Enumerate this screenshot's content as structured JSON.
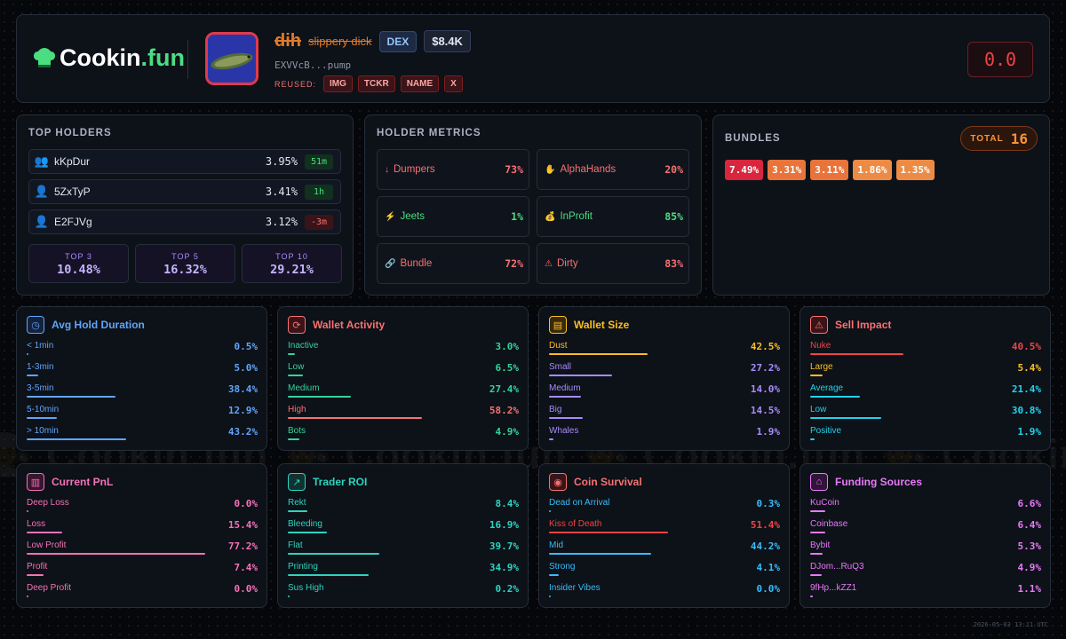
{
  "brand": {
    "name_a": "Cookin",
    "name_b": ".fun",
    "watermark": "Cookin.fun"
  },
  "token": {
    "ticker": "dih",
    "name": "slippery dick",
    "venue": "DEX",
    "market_cap": "$8.4K",
    "address": "EXVVcB...pump",
    "reused_label": "REUSED:",
    "reused": [
      "IMG",
      "TCKR",
      "NAME",
      "X"
    ],
    "score": "0.0"
  },
  "top_holders": {
    "title": "TOP HOLDERS",
    "rows": [
      {
        "name": "kKpDur",
        "pct": "3.95%",
        "age": "51m",
        "age_tone": "g",
        "icon": "users-icon"
      },
      {
        "name": "5ZxTyP",
        "pct": "3.41%",
        "age": "1h",
        "age_tone": "g",
        "icon": "user-icon"
      },
      {
        "name": "E2FJVg",
        "pct": "3.12%",
        "age": "-3m",
        "age_tone": "r",
        "icon": "user-icon"
      }
    ],
    "tops": [
      {
        "label": "TOP 3",
        "value": "10.48%"
      },
      {
        "label": "TOP 5",
        "value": "16.32%"
      },
      {
        "label": "TOP 10",
        "value": "29.21%"
      }
    ]
  },
  "holder_metrics": {
    "title": "HOLDER METRICS",
    "items": [
      {
        "icon": "↓",
        "label": "Dumpers",
        "value": "73%",
        "color": "#f87171"
      },
      {
        "icon": "✋",
        "label": "AlphaHands",
        "value": "20%",
        "color": "#f87171"
      },
      {
        "icon": "⚡",
        "label": "Jeets",
        "value": "1%",
        "color": "#4ade80"
      },
      {
        "icon": "💰",
        "label": "InProfit",
        "value": "85%",
        "color": "#4ade80"
      },
      {
        "icon": "🔗",
        "label": "Bundle",
        "value": "72%",
        "color": "#f87171"
      },
      {
        "icon": "⚠",
        "label": "Dirty",
        "value": "83%",
        "color": "#f87171"
      }
    ]
  },
  "bundles": {
    "title": "BUNDLES",
    "total_label": "TOTAL",
    "total": "16",
    "chips": [
      {
        "value": "7.49%",
        "color": "#d7263d"
      },
      {
        "value": "3.31%",
        "color": "#e8743b"
      },
      {
        "value": "3.11%",
        "color": "#e8743b"
      },
      {
        "value": "1.86%",
        "color": "#ec8b45"
      },
      {
        "value": "1.35%",
        "color": "#ec8b45"
      }
    ]
  },
  "cards": [
    {
      "title": "Avg Hold Duration",
      "icon": "clock-icon",
      "glyph": "◷",
      "color": "#60a5fa",
      "bg": "#14223d",
      "rows": [
        {
          "label": "< 1min",
          "value": "0.5%",
          "pct": 0.5,
          "color": "#60a5fa"
        },
        {
          "label": "1-3min",
          "value": "5.0%",
          "pct": 5.0,
          "color": "#60a5fa"
        },
        {
          "label": "3-5min",
          "value": "38.4%",
          "pct": 38.4,
          "color": "#60a5fa"
        },
        {
          "label": "5-10min",
          "value": "12.9%",
          "pct": 12.9,
          "color": "#60a5fa"
        },
        {
          "label": "> 10min",
          "value": "43.2%",
          "pct": 43.2,
          "color": "#60a5fa"
        }
      ]
    },
    {
      "title": "Wallet Activity",
      "icon": "refresh-icon",
      "glyph": "⟳",
      "color": "#f87171",
      "bg": "#3a1418",
      "rows": [
        {
          "label": "Inactive",
          "value": "3.0%",
          "pct": 3.0,
          "color": "#34d399"
        },
        {
          "label": "Low",
          "value": "6.5%",
          "pct": 6.5,
          "color": "#34d399"
        },
        {
          "label": "Medium",
          "value": "27.4%",
          "pct": 27.4,
          "color": "#34d399"
        },
        {
          "label": "High",
          "value": "58.2%",
          "pct": 58.2,
          "color": "#f87171"
        },
        {
          "label": "Bots",
          "value": "4.9%",
          "pct": 4.9,
          "color": "#34d399"
        }
      ]
    },
    {
      "title": "Wallet Size",
      "icon": "wallet-icon",
      "glyph": "▤",
      "color": "#fbbf24",
      "bg": "#3a2a0c",
      "rows": [
        {
          "label": "Dust",
          "value": "42.5%",
          "pct": 42.5,
          "color": "#fbbf24"
        },
        {
          "label": "Small",
          "value": "27.2%",
          "pct": 27.2,
          "color": "#a78bfa"
        },
        {
          "label": "Medium",
          "value": "14.0%",
          "pct": 14.0,
          "color": "#a78bfa"
        },
        {
          "label": "Big",
          "value": "14.5%",
          "pct": 14.5,
          "color": "#a78bfa"
        },
        {
          "label": "Whales",
          "value": "1.9%",
          "pct": 1.9,
          "color": "#a78bfa"
        }
      ]
    },
    {
      "title": "Sell Impact",
      "icon": "warning-icon",
      "glyph": "⚠",
      "color": "#f87171",
      "bg": "#3a1418",
      "rows": [
        {
          "label": "Nuke",
          "value": "40.5%",
          "pct": 40.5,
          "color": "#ef4444"
        },
        {
          "label": "Large",
          "value": "5.4%",
          "pct": 5.4,
          "color": "#fbbf24"
        },
        {
          "label": "Average",
          "value": "21.4%",
          "pct": 21.4,
          "color": "#22d3ee"
        },
        {
          "label": "Low",
          "value": "30.8%",
          "pct": 30.8,
          "color": "#22d3ee"
        },
        {
          "label": "Positive",
          "value": "1.9%",
          "pct": 1.9,
          "color": "#22d3ee"
        }
      ]
    },
    {
      "title": "Current PnL",
      "icon": "bar-chart-icon",
      "glyph": "▥",
      "color": "#f472b6",
      "bg": "#3a1430",
      "rows": [
        {
          "label": "Deep Loss",
          "value": "0.0%",
          "pct": 0.0,
          "color": "#f472b6"
        },
        {
          "label": "Loss",
          "value": "15.4%",
          "pct": 15.4,
          "color": "#f472b6"
        },
        {
          "label": "Low Profit",
          "value": "77.2%",
          "pct": 77.2,
          "color": "#f472b6"
        },
        {
          "label": "Profit",
          "value": "7.4%",
          "pct": 7.4,
          "color": "#f472b6"
        },
        {
          "label": "Deep Profit",
          "value": "0.0%",
          "pct": 0.0,
          "color": "#f472b6"
        }
      ]
    },
    {
      "title": "Trader ROI",
      "icon": "trend-up-icon",
      "glyph": "↗",
      "color": "#2dd4bf",
      "bg": "#0f3330",
      "rows": [
        {
          "label": "Rekt",
          "value": "8.4%",
          "pct": 8.4,
          "color": "#2dd4bf"
        },
        {
          "label": "Bleeding",
          "value": "16.9%",
          "pct": 16.9,
          "color": "#2dd4bf"
        },
        {
          "label": "Flat",
          "value": "39.7%",
          "pct": 39.7,
          "color": "#2dd4bf"
        },
        {
          "label": "Printing",
          "value": "34.9%",
          "pct": 34.9,
          "color": "#2dd4bf"
        },
        {
          "label": "Sus High",
          "value": "0.2%",
          "pct": 0.2,
          "color": "#2dd4bf"
        }
      ]
    },
    {
      "title": "Coin Survival",
      "icon": "signal-icon",
      "glyph": "◉",
      "color": "#f87171",
      "bg": "#3a1418",
      "rows": [
        {
          "label": "Dead on Arrival",
          "value": "0.3%",
          "pct": 0.3,
          "color": "#38bdf8"
        },
        {
          "label": "Kiss of Death",
          "value": "51.4%",
          "pct": 51.4,
          "color": "#ef4444"
        },
        {
          "label": "Mid",
          "value": "44.2%",
          "pct": 44.2,
          "color": "#38bdf8"
        },
        {
          "label": "Strong",
          "value": "4.1%",
          "pct": 4.1,
          "color": "#38bdf8"
        },
        {
          "label": "Insider Vibes",
          "value": "0.0%",
          "pct": 0.0,
          "color": "#38bdf8"
        }
      ]
    },
    {
      "title": "Funding Sources",
      "icon": "bank-icon",
      "glyph": "⌂",
      "color": "#e879f9",
      "bg": "#32143a",
      "rows": [
        {
          "label": "KuCoin",
          "value": "6.6%",
          "pct": 6.6,
          "color": "#e879f9"
        },
        {
          "label": "Coinbase",
          "value": "6.4%",
          "pct": 6.4,
          "color": "#e879f9"
        },
        {
          "label": "Bybit",
          "value": "5.3%",
          "pct": 5.3,
          "color": "#e879f9"
        },
        {
          "label": "DJom...RuQ3",
          "value": "4.9%",
          "pct": 4.9,
          "color": "#e879f9"
        },
        {
          "label": "9fHp...kZZ1",
          "value": "1.1%",
          "pct": 1.1,
          "color": "#e879f9"
        }
      ]
    }
  ],
  "footer": "2026-05-03 13:11 UTC"
}
